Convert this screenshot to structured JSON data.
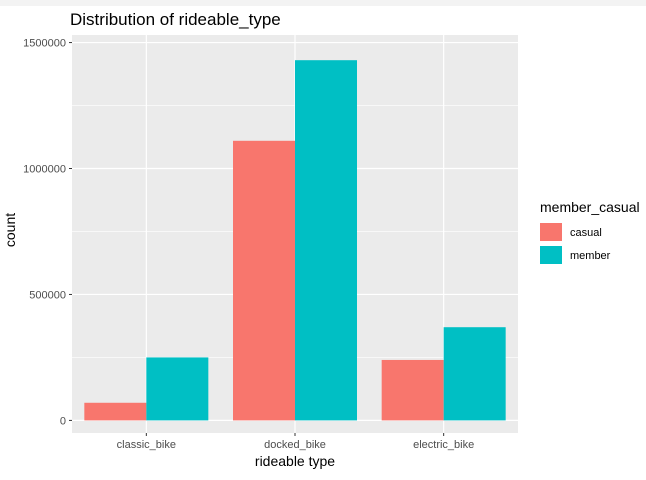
{
  "chart_data": {
    "type": "bar",
    "title": "Distribution of rideable_type",
    "xlabel": "rideable type",
    "ylabel": "count",
    "categories": [
      "classic_bike",
      "docked_bike",
      "electric_bike"
    ],
    "series": [
      {
        "name": "casual",
        "values": [
          70000,
          1110000,
          240000
        ],
        "color": "#F8766D"
      },
      {
        "name": "member",
        "values": [
          250000,
          1430000,
          370000
        ],
        "color": "#00BFC4"
      }
    ],
    "ylim": [
      -50000,
      1530000
    ],
    "y_ticks": [
      "0",
      "500000",
      "1000000",
      "1500000"
    ],
    "legend": {
      "title": "member_casual",
      "position": "right"
    },
    "panel_background": "#EBEBEB",
    "grid": true
  }
}
